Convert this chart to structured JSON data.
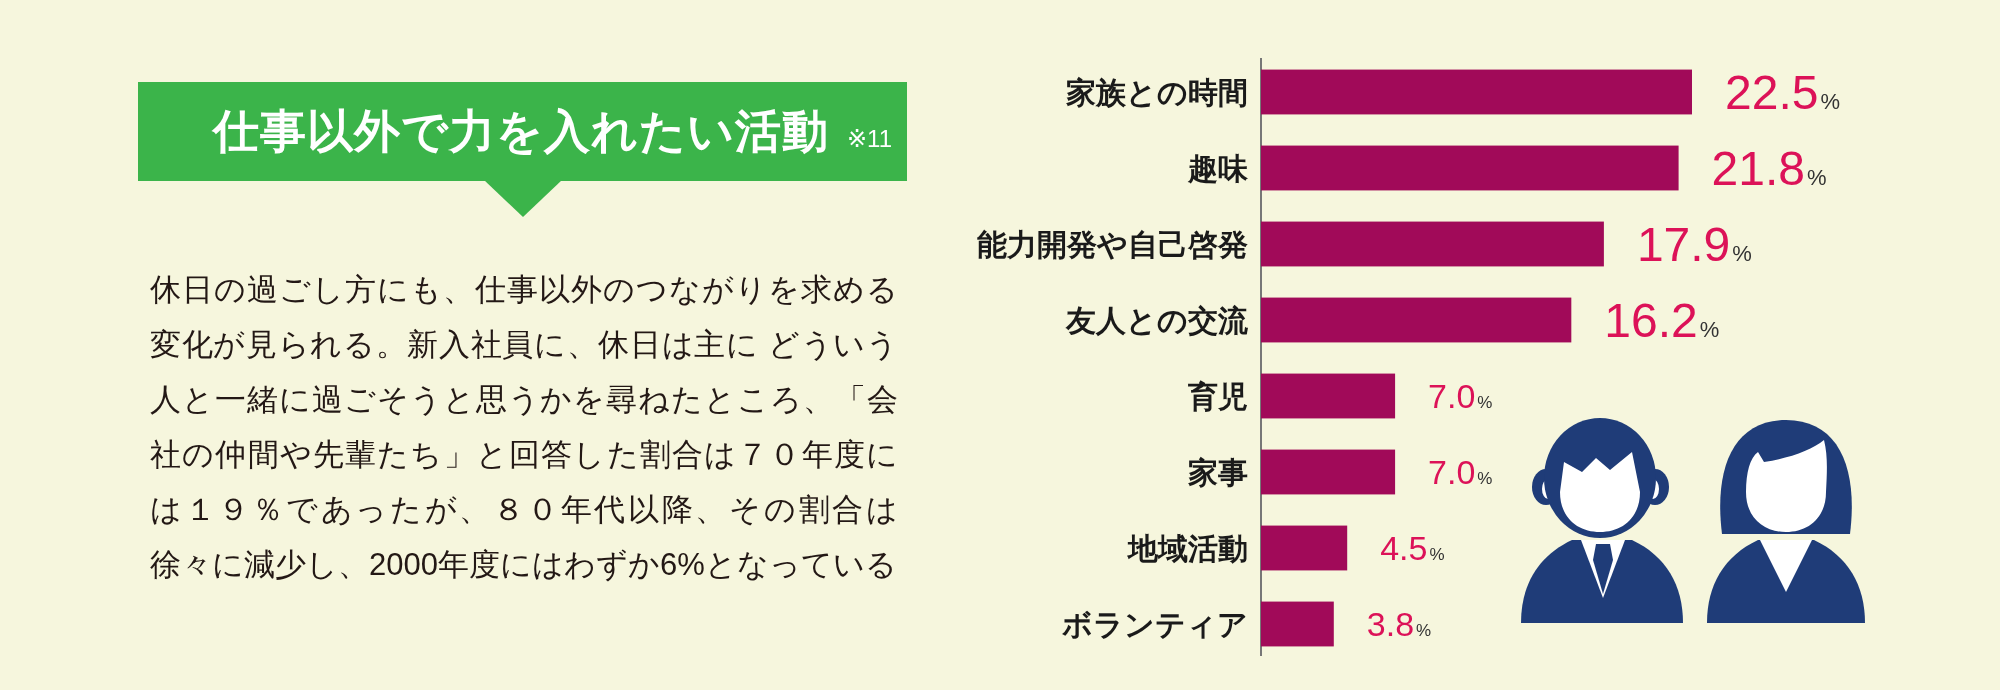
{
  "chart_data": {
    "type": "bar",
    "orientation": "horizontal",
    "title": "仕事以外で力を入れたい活動",
    "annotations": [
      "※11",
      "休日の過ごし方にも、仕事以外のつながりを求める変化が見られる。新入社員に、休日は主に どういう人と一緒に過ごそうと思うかを尋ねたところ、「会社の仲間や先輩たち」と回答した割合は７０年度には１９％であったが、８０年代以降、その割合は徐々に減少し、2000年度にはわずか6%となっている"
    ],
    "categories": [
      "家族との時間",
      "趣味",
      "能力開発や自己啓発",
      "友人との交流",
      "育児",
      "家事",
      "地域活動",
      "ボランティア"
    ],
    "values": [
      22.5,
      21.8,
      17.9,
      16.2,
      7.0,
      7.0,
      4.5,
      3.8
    ],
    "value_labels": [
      "22.5%",
      "21.8%",
      "17.9%",
      "16.2%",
      "7.0%",
      "7.0%",
      "4.5%",
      "3.8%"
    ],
    "color": "#a10a59"
  }
}
